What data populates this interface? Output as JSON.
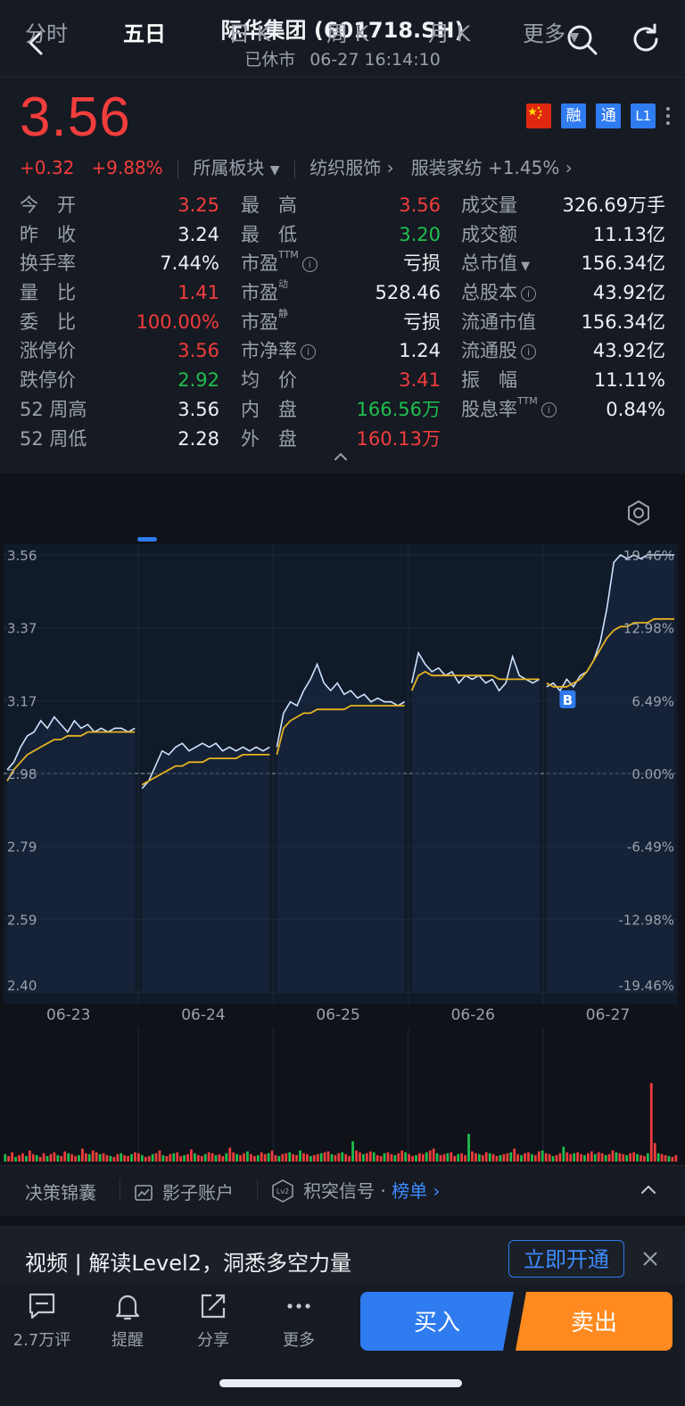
{
  "header": {
    "title": "际华集团 (601718.SH)",
    "status": "已休市",
    "datetime": "06-27 16:14:10"
  },
  "quote": {
    "price": "3.56",
    "change": "+0.32",
    "change_pct": "+9.88%",
    "sector_label": "所属板块",
    "industry": "纺织服饰",
    "sub_industry": "服装家纺",
    "sub_industry_change": "+1.45%",
    "badges": [
      "融",
      "通",
      "L1"
    ],
    "colors": {
      "up": "#f23d3d",
      "down": "#1fbf4f",
      "accent": "#2f7bf0"
    }
  },
  "stats": {
    "col1": [
      {
        "label": "今　开",
        "value": "3.25",
        "color": "red"
      },
      {
        "label": "昨　收",
        "value": "3.24",
        "color": "white"
      },
      {
        "label": "换手率",
        "value": "7.44%",
        "color": "white"
      },
      {
        "label": "量　比",
        "value": "1.41",
        "color": "red"
      },
      {
        "label": "委　比",
        "value": "100.00%",
        "color": "red"
      },
      {
        "label": "涨停价",
        "value": "3.56",
        "color": "red"
      },
      {
        "label": "跌停价",
        "value": "2.92",
        "color": "green"
      },
      {
        "label": "52 周高",
        "value": "3.56",
        "color": "white"
      },
      {
        "label": "52 周低",
        "value": "2.28",
        "color": "white"
      }
    ],
    "col2": [
      {
        "label": "最　高",
        "value": "3.56",
        "color": "red"
      },
      {
        "label": "最　低",
        "value": "3.20",
        "color": "green"
      },
      {
        "label": "市盈",
        "sup": "TTM",
        "info": true,
        "value": "亏损",
        "color": "white"
      },
      {
        "label": "市盈",
        "sup": "动",
        "value": "528.46",
        "color": "white"
      },
      {
        "label": "市盈",
        "sup": "静",
        "value": "亏损",
        "color": "white"
      },
      {
        "label": "市净率",
        "info": true,
        "value": "1.24",
        "color": "white"
      },
      {
        "label": "均　价",
        "value": "3.41",
        "color": "red"
      },
      {
        "label": "内　盘",
        "value": "166.56万",
        "color": "green"
      },
      {
        "label": "外　盘",
        "value": "160.13万",
        "color": "red"
      }
    ],
    "col3": [
      {
        "label": "成交量",
        "value": "326.69万手",
        "color": "white"
      },
      {
        "label": "成交额",
        "value": "11.13亿",
        "color": "white"
      },
      {
        "label": "总市值",
        "caret": true,
        "value": "156.34亿",
        "color": "white"
      },
      {
        "label": "总股本",
        "info": true,
        "value": "43.92亿",
        "color": "white"
      },
      {
        "label": "流通市值",
        "value": "156.34亿",
        "color": "white"
      },
      {
        "label": "流通股",
        "info": true,
        "value": "43.92亿",
        "color": "white"
      },
      {
        "label": "振　幅",
        "value": "11.11%",
        "color": "white"
      },
      {
        "label": "股息率",
        "sup": "TTM",
        "info": true,
        "value": "0.84%",
        "color": "white"
      }
    ]
  },
  "tabs": [
    "分时",
    "五日",
    "日 K",
    "周 K",
    "月 K",
    "更多"
  ],
  "active_tab": "五日",
  "chart_data": {
    "type": "line",
    "y_left_ticks": [
      "3.56",
      "3.37",
      "3.17",
      "2.98",
      "2.79",
      "2.59",
      "2.40"
    ],
    "y_right_ticks": [
      "19.46%",
      "12.98%",
      "6.49%",
      "0.00%",
      "-6.49%",
      "-12.98%",
      "-19.46%"
    ],
    "x_labels": [
      "06-23",
      "06-24",
      "06-25",
      "06-26",
      "06-27"
    ],
    "ylim": [
      2.4,
      3.56
    ],
    "prev_close": 2.98,
    "marker": "B",
    "series": [
      {
        "values": [
          2.99,
          3.01,
          3.05,
          3.08,
          3.09,
          3.12,
          3.1,
          3.13,
          3.11,
          3.09,
          3.12,
          3.1,
          3.11,
          3.09,
          3.1,
          3.09,
          3.1,
          3.1,
          3.09,
          3.1
        ]
      },
      {
        "values": [
          2.96,
          2.99,
          3.01,
          3.03,
          3.04,
          3.05,
          3.06,
          3.07,
          3.07,
          3.08,
          3.08,
          3.08,
          3.09,
          3.09,
          3.09,
          3.09,
          3.09,
          3.09,
          3.09,
          3.09
        ]
      },
      {
        "values": [
          2.94,
          2.96,
          3.0,
          3.04,
          3.03,
          3.05,
          3.06,
          3.04,
          3.05,
          3.06,
          3.05,
          3.06,
          3.04,
          3.05,
          3.04,
          3.05,
          3.04,
          3.05,
          3.04,
          3.05
        ]
      },
      {
        "values": [
          2.95,
          2.96,
          2.97,
          2.98,
          2.99,
          3.0,
          3.0,
          3.01,
          3.01,
          3.01,
          3.02,
          3.02,
          3.02,
          3.02,
          3.02,
          3.03,
          3.03,
          3.03,
          3.03,
          3.03
        ]
      },
      {
        "values": [
          3.05,
          3.14,
          3.17,
          3.16,
          3.2,
          3.23,
          3.27,
          3.22,
          3.2,
          3.22,
          3.19,
          3.2,
          3.18,
          3.19,
          3.17,
          3.18,
          3.17,
          3.17,
          3.16,
          3.17
        ]
      },
      {
        "values": [
          3.03,
          3.1,
          3.12,
          3.13,
          3.14,
          3.14,
          3.15,
          3.15,
          3.15,
          3.15,
          3.15,
          3.16,
          3.16,
          3.16,
          3.16,
          3.16,
          3.16,
          3.16,
          3.16,
          3.16
        ]
      },
      {
        "values": [
          3.22,
          3.3,
          3.27,
          3.25,
          3.26,
          3.24,
          3.25,
          3.22,
          3.24,
          3.23,
          3.24,
          3.22,
          3.23,
          3.2,
          3.22,
          3.29,
          3.24,
          3.23,
          3.22,
          3.23
        ]
      },
      {
        "values": [
          3.2,
          3.24,
          3.25,
          3.24,
          3.24,
          3.24,
          3.24,
          3.24,
          3.24,
          3.24,
          3.24,
          3.24,
          3.24,
          3.23,
          3.23,
          3.23,
          3.23,
          3.23,
          3.23,
          3.23
        ]
      },
      {
        "values": [
          3.21,
          3.22,
          3.2,
          3.23,
          3.21,
          3.24,
          3.25,
          3.28,
          3.33,
          3.42,
          3.54,
          3.56,
          3.55,
          3.56,
          3.55,
          3.56,
          3.56,
          3.56,
          3.56,
          3.56
        ]
      },
      {
        "values": [
          3.22,
          3.21,
          3.21,
          3.21,
          3.22,
          3.23,
          3.25,
          3.28,
          3.31,
          3.34,
          3.36,
          3.37,
          3.37,
          3.38,
          3.38,
          3.38,
          3.39,
          3.39,
          3.39,
          3.39
        ]
      }
    ],
    "volume": [
      8,
      6,
      10,
      5,
      7,
      9,
      6,
      12,
      8,
      7,
      5,
      9,
      6,
      8,
      10,
      7,
      6,
      11,
      9,
      8,
      6,
      7,
      14,
      9,
      8,
      12,
      10,
      8,
      9,
      7,
      6,
      5,
      8,
      9,
      7,
      6,
      8,
      10,
      9,
      7,
      5,
      6,
      8,
      9,
      12,
      7,
      6,
      8,
      9,
      10,
      6,
      7,
      8,
      13,
      9,
      7,
      6,
      8,
      10,
      9,
      7,
      8,
      6,
      9,
      15,
      10,
      8,
      7,
      9,
      11,
      8,
      6,
      7,
      10,
      8,
      9,
      12,
      7,
      6,
      8,
      9,
      10,
      8,
      7,
      12,
      9,
      8,
      6,
      7,
      8,
      9,
      10,
      11,
      8,
      7,
      9,
      10,
      8,
      6,
      22,
      12,
      10,
      8,
      9,
      11,
      10,
      7,
      6,
      9,
      10,
      8,
      7,
      9,
      12,
      10,
      8,
      6,
      7,
      9,
      8,
      10,
      12,
      14,
      9,
      7,
      8,
      9,
      10,
      6,
      8,
      9,
      7,
      30,
      11,
      9,
      8,
      7,
      10,
      9,
      8,
      6,
      7,
      8,
      9,
      10,
      14,
      8,
      7,
      9,
      10,
      8,
      7,
      11,
      12,
      9,
      8,
      6,
      7,
      9,
      16,
      10,
      8,
      9,
      10,
      8,
      7,
      9,
      11,
      8,
      10,
      9,
      7,
      8,
      12,
      10,
      9,
      8,
      7,
      9,
      10,
      8,
      7,
      6,
      9,
      85,
      20,
      9,
      8,
      7,
      6,
      5,
      7
    ]
  },
  "tools": [
    {
      "label": "决策锦囊"
    },
    {
      "label": "影子账户"
    },
    {
      "label": "积突信号 · ",
      "link": "榜单"
    }
  ],
  "promo": {
    "text": "视频 | 解读Level2，洞悉多空力量",
    "button": "立即开通"
  },
  "bottom_bar": {
    "items": [
      "2.7万评",
      "提醒",
      "分享",
      "更多"
    ],
    "buy": "买入",
    "sell": "卖出"
  }
}
